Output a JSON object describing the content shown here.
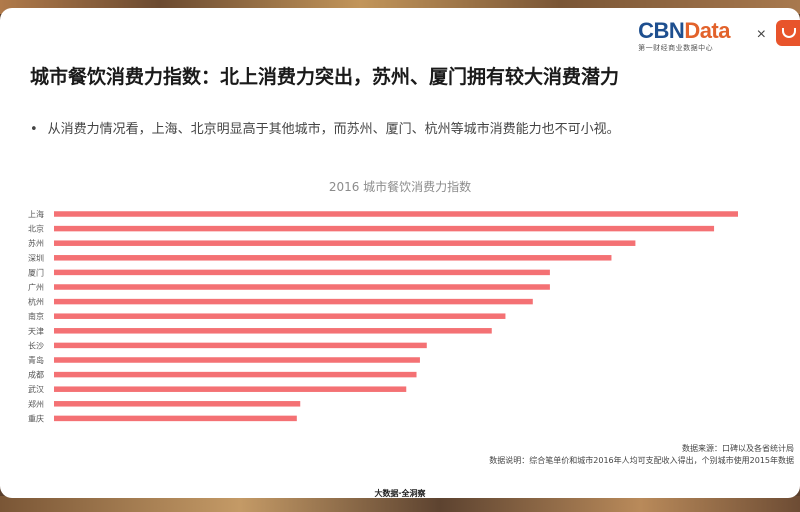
{
  "header": {
    "brand_main": "CBN",
    "brand_accent": "Data",
    "brand_sub": "第一财经商业数据中心",
    "times": "×"
  },
  "title": "城市餐饮消费力指数：北上消费力突出，苏州、厦门拥有较大消费潜力",
  "bullet": "从消费力情况看，上海、北京明显高于其他城市，而苏州、厦门、杭州等城市消费能力也不可小视。",
  "notes": {
    "source": "数据来源：口碑以及各省统计局",
    "description": "数据说明：综合笔单价和城市2016年人均可支配收入得出，个别城市使用2015年数据"
  },
  "footer": "大数据·全洞察",
  "colors": {
    "bar": "#f47174",
    "brand_blue": "#1e4f8f",
    "brand_orange": "#e2622b"
  },
  "chart_data": {
    "type": "bar",
    "orientation": "horizontal",
    "title": "2016 城市餐饮消费力指数",
    "categories": [
      "上海",
      "北京",
      "苏州",
      "深圳",
      "厦门",
      "广州",
      "杭州",
      "南京",
      "天津",
      "长沙",
      "青岛",
      "成都",
      "武汉",
      "郑州",
      "重庆"
    ],
    "values": [
      100,
      96.5,
      85,
      81.5,
      72.5,
      72.5,
      70,
      66,
      64,
      54.5,
      53.5,
      53,
      51.5,
      36,
      35.5
    ],
    "xlim": [
      0,
      100
    ],
    "grid": false,
    "legend": "none"
  }
}
